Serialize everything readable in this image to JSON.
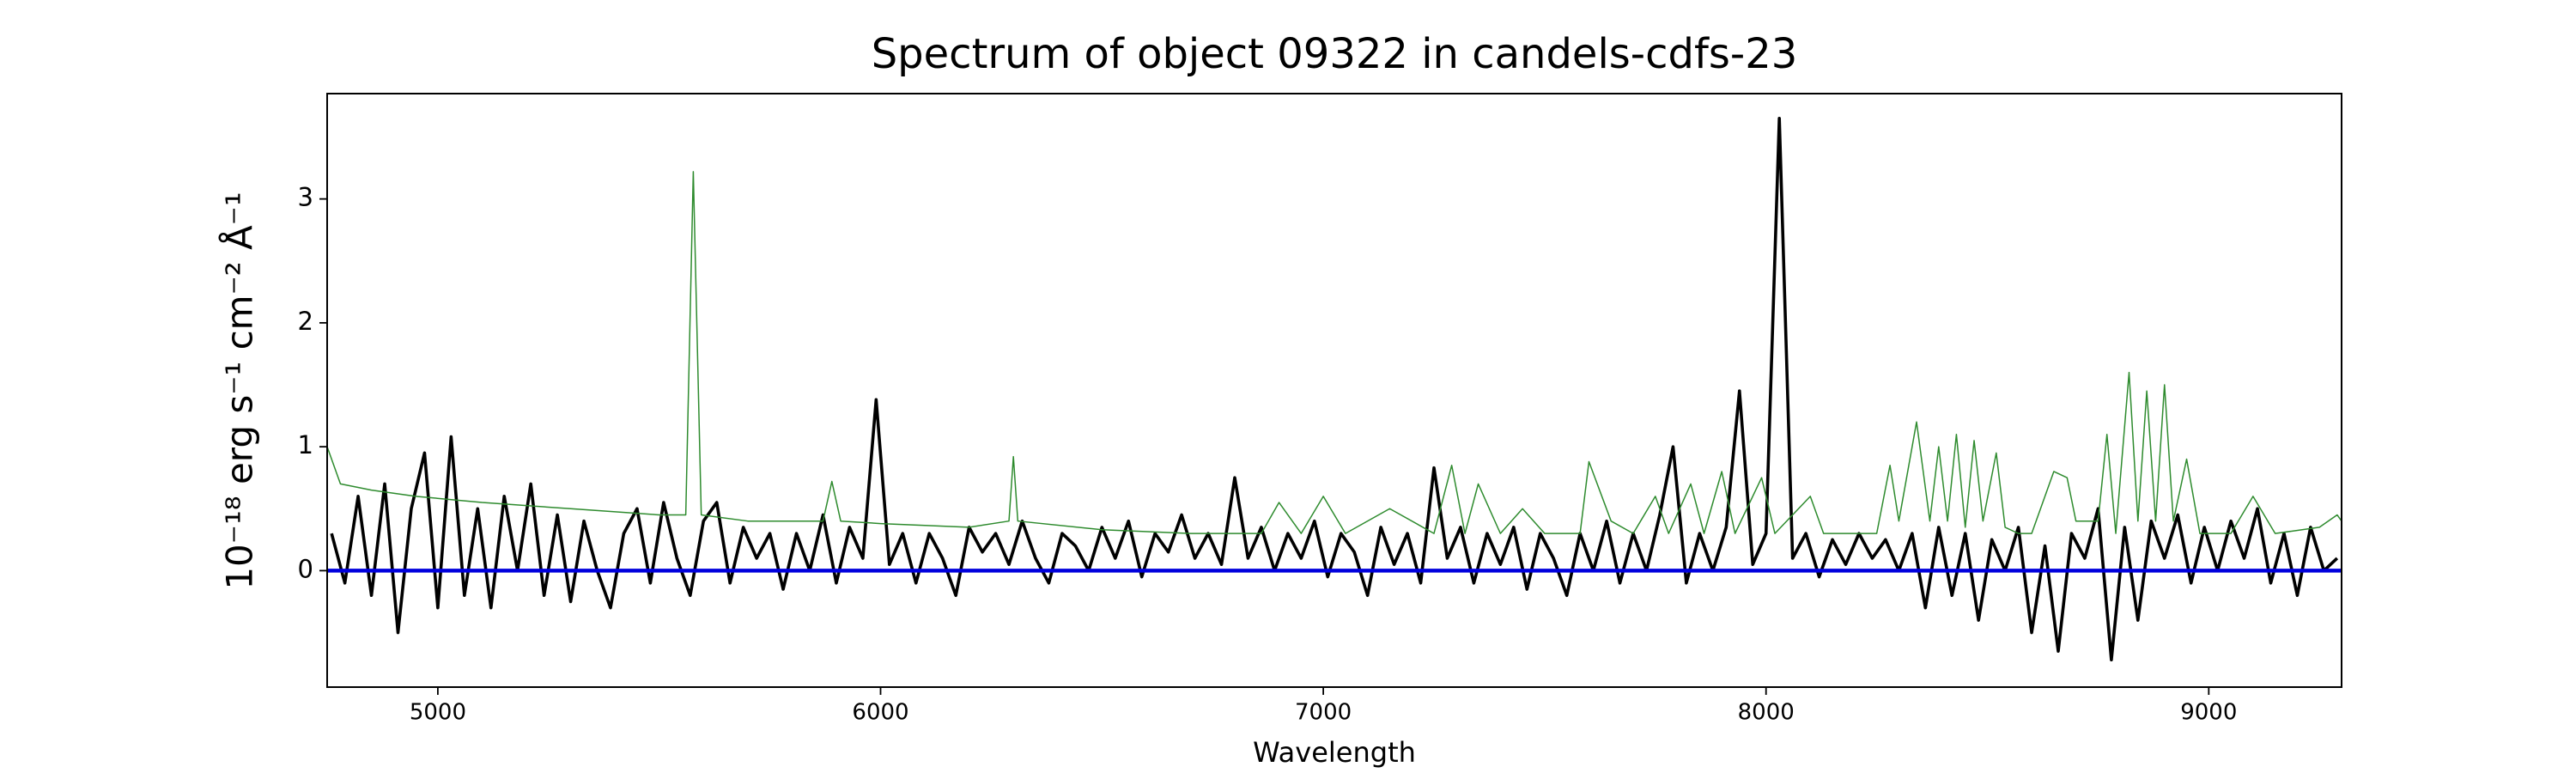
{
  "chart_data": {
    "type": "line",
    "title": "Spectrum of object 09322 in candels-cdfs-23",
    "x_label": "Wavelength",
    "y_label": "10⁻¹⁸ erg s⁻¹ cm⁻² Å⁻¹",
    "xlim": [
      4750,
      9300
    ],
    "ylim": [
      -0.94,
      3.85
    ],
    "xticks": [
      5000,
      6000,
      7000,
      8000,
      9000
    ],
    "yticks": [
      0,
      1,
      2,
      3
    ],
    "grid": false,
    "series": [
      {
        "color": "#000000",
        "x": [
          4760,
          4790,
          4820,
          4850,
          4880,
          4910,
          4940,
          4970,
          5000,
          5030,
          5060,
          5090,
          5120,
          5150,
          5180,
          5210,
          5240,
          5270,
          5300,
          5330,
          5360,
          5390,
          5420,
          5450,
          5480,
          5510,
          5540,
          5570,
          5600,
          5630,
          5660,
          5690,
          5720,
          5750,
          5780,
          5810,
          5840,
          5870,
          5900,
          5930,
          5960,
          5990,
          6020,
          6050,
          6080,
          6110,
          6140,
          6170,
          6200,
          6230,
          6260,
          6290,
          6320,
          6350,
          6380,
          6410,
          6440,
          6470,
          6500,
          6530,
          6560,
          6590,
          6620,
          6650,
          6680,
          6710,
          6740,
          6770,
          6800,
          6830,
          6860,
          6890,
          6920,
          6950,
          6980,
          7010,
          7040,
          7070,
          7100,
          7130,
          7160,
          7190,
          7220,
          7250,
          7280,
          7310,
          7340,
          7370,
          7400,
          7430,
          7460,
          7490,
          7520,
          7550,
          7580,
          7610,
          7640,
          7670,
          7700,
          7730,
          7760,
          7790,
          7820,
          7850,
          7880,
          7910,
          7940,
          7970,
          8000,
          8030,
          8060,
          8090,
          8120,
          8150,
          8180,
          8210,
          8240,
          8270,
          8300,
          8330,
          8360,
          8390,
          8420,
          8450,
          8480,
          8510,
          8540,
          8570,
          8600,
          8630,
          8660,
          8690,
          8720,
          8750,
          8780,
          8810,
          8840,
          8870,
          8900,
          8930,
          8960,
          8990,
          9020,
          9050,
          9080,
          9110,
          9140,
          9170,
          9200,
          9230,
          9260,
          9290
        ],
        "values": [
          0.3,
          -0.1,
          0.6,
          -0.2,
          0.7,
          -0.5,
          0.5,
          0.95,
          -0.3,
          1.08,
          -0.2,
          0.5,
          -0.3,
          0.6,
          0.0,
          0.7,
          -0.2,
          0.45,
          -0.25,
          0.4,
          0.0,
          -0.3,
          0.3,
          0.5,
          -0.1,
          0.55,
          0.1,
          -0.2,
          0.4,
          0.55,
          -0.1,
          0.35,
          0.1,
          0.3,
          -0.15,
          0.3,
          0.0,
          0.45,
          -0.1,
          0.35,
          0.1,
          1.38,
          0.05,
          0.3,
          -0.1,
          0.3,
          0.1,
          -0.2,
          0.35,
          0.15,
          0.3,
          0.05,
          0.4,
          0.1,
          -0.1,
          0.3,
          0.2,
          0.0,
          0.35,
          0.1,
          0.4,
          -0.05,
          0.3,
          0.15,
          0.45,
          0.1,
          0.3,
          0.05,
          0.75,
          0.1,
          0.35,
          0.0,
          0.3,
          0.1,
          0.4,
          -0.05,
          0.3,
          0.15,
          -0.2,
          0.35,
          0.05,
          0.3,
          -0.1,
          0.83,
          0.1,
          0.35,
          -0.1,
          0.3,
          0.05,
          0.35,
          -0.15,
          0.3,
          0.1,
          -0.2,
          0.3,
          0.0,
          0.4,
          -0.1,
          0.3,
          0.0,
          0.45,
          1.0,
          -0.1,
          0.3,
          0.0,
          0.35,
          1.45,
          0.05,
          0.3,
          3.65,
          0.1,
          0.3,
          -0.05,
          0.25,
          0.05,
          0.3,
          0.1,
          0.25,
          0.0,
          0.3,
          -0.3,
          0.35,
          -0.2,
          0.3,
          -0.4,
          0.25,
          0.0,
          0.35,
          -0.5,
          0.2,
          -0.65,
          0.3,
          0.1,
          0.5,
          -0.72,
          0.35,
          -0.4,
          0.4,
          0.1,
          0.45,
          -0.1,
          0.35,
          0.0,
          0.4,
          0.1,
          0.5,
          -0.1,
          0.3,
          -0.2,
          0.35,
          0.0,
          0.1
        ]
      },
      {
        "color": "#2e8b2e",
        "x": [
          4750,
          4780,
          4850,
          4950,
          5100,
          5300,
          5500,
          5560,
          5577,
          5595,
          5700,
          5870,
          5890,
          5910,
          6000,
          6200,
          6290,
          6300,
          6310,
          6500,
          6700,
          6860,
          6900,
          6950,
          7000,
          7050,
          7150,
          7250,
          7290,
          7320,
          7350,
          7400,
          7450,
          7500,
          7580,
          7600,
          7650,
          7700,
          7750,
          7780,
          7830,
          7860,
          7900,
          7930,
          7990,
          8020,
          8100,
          8130,
          8250,
          8280,
          8300,
          8340,
          8370,
          8390,
          8410,
          8430,
          8450,
          8470,
          8490,
          8520,
          8540,
          8570,
          8600,
          8650,
          8680,
          8700,
          8750,
          8770,
          8790,
          8820,
          8840,
          8860,
          8880,
          8900,
          8920,
          8950,
          8980,
          9050,
          9100,
          9150,
          9250,
          9290,
          9300
        ],
        "values": [
          1.0,
          0.7,
          0.65,
          0.6,
          0.55,
          0.5,
          0.45,
          0.45,
          3.22,
          0.45,
          0.4,
          0.4,
          0.72,
          0.4,
          0.38,
          0.35,
          0.4,
          0.92,
          0.4,
          0.33,
          0.3,
          0.3,
          0.55,
          0.3,
          0.6,
          0.3,
          0.5,
          0.3,
          0.85,
          0.3,
          0.7,
          0.3,
          0.5,
          0.3,
          0.3,
          0.88,
          0.4,
          0.3,
          0.6,
          0.3,
          0.7,
          0.3,
          0.8,
          0.3,
          0.75,
          0.3,
          0.6,
          0.3,
          0.3,
          0.85,
          0.4,
          1.2,
          0.4,
          1.0,
          0.4,
          1.1,
          0.35,
          1.05,
          0.4,
          0.95,
          0.35,
          0.3,
          0.3,
          0.8,
          0.75,
          0.4,
          0.4,
          1.1,
          0.3,
          1.6,
          0.4,
          1.45,
          0.4,
          1.5,
          0.4,
          0.9,
          0.3,
          0.3,
          0.6,
          0.3,
          0.35,
          0.45,
          0.4
        ]
      },
      {
        "color": "#0000dd",
        "x": [
          4750,
          9300
        ],
        "values": [
          0,
          0
        ]
      }
    ]
  }
}
